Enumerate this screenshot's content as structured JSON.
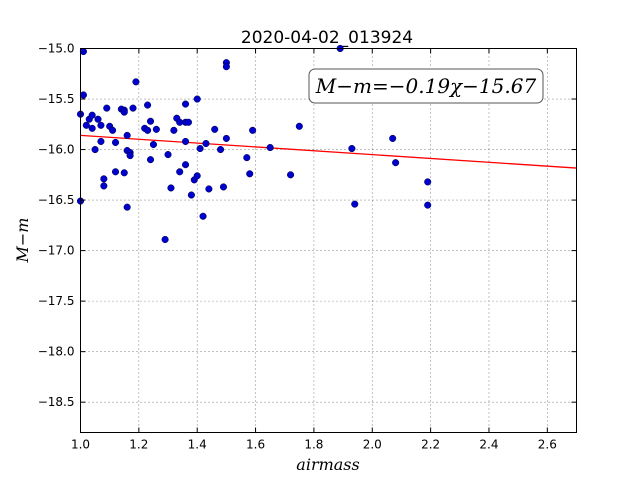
{
  "chart_data": {
    "type": "scatter",
    "title": "2020-04-02_013924",
    "xlabel": "airmass",
    "ylabel": "M−m",
    "xlim": [
      1.0,
      2.7
    ],
    "ylim": [
      -15.0,
      -18.8
    ],
    "y_inverted": true,
    "grid": true,
    "x_ticks": [
      1.0,
      1.2,
      1.4,
      1.6,
      1.8,
      2.0,
      2.2,
      2.4,
      2.6
    ],
    "x_tick_labels": [
      "1.0",
      "1.2",
      "1.4",
      "1.6",
      "1.8",
      "2.0",
      "2.2",
      "2.4",
      "2.6"
    ],
    "y_ticks": [
      -15.0,
      -15.5,
      -16.0,
      -16.5,
      -17.0,
      -17.5,
      -18.0,
      -18.5
    ],
    "y_tick_labels": [
      "−15.0",
      "−15.5",
      "−16.0",
      "−16.5",
      "−17.0",
      "−17.5",
      "−18.0",
      "−18.5"
    ],
    "annotation": "M−m=−0.19χ−15.67",
    "annotation_placement": "top-right",
    "fit": {
      "slope": -0.19,
      "intercept": -15.67,
      "color": "#ff0000"
    },
    "marker_color": "#0000cc",
    "points": [
      [
        1.0,
        -15.65
      ],
      [
        1.0,
        -16.51
      ],
      [
        1.01,
        -15.03
      ],
      [
        1.01,
        -15.46
      ],
      [
        1.02,
        -15.76
      ],
      [
        1.03,
        -15.7
      ],
      [
        1.04,
        -15.66
      ],
      [
        1.04,
        -15.79
      ],
      [
        1.05,
        -16.0
      ],
      [
        1.06,
        -15.7
      ],
      [
        1.07,
        -15.92
      ],
      [
        1.07,
        -15.76
      ],
      [
        1.08,
        -16.36
      ],
      [
        1.08,
        -16.29
      ],
      [
        1.09,
        -15.59
      ],
      [
        1.1,
        -15.77
      ],
      [
        1.11,
        -15.81
      ],
      [
        1.12,
        -15.93
      ],
      [
        1.12,
        -16.22
      ],
      [
        1.14,
        -15.6
      ],
      [
        1.15,
        -15.61
      ],
      [
        1.15,
        -16.23
      ],
      [
        1.15,
        -15.63
      ],
      [
        1.16,
        -15.86
      ],
      [
        1.16,
        -16.57
      ],
      [
        1.16,
        -16.01
      ],
      [
        1.17,
        -16.03
      ],
      [
        1.17,
        -16.06
      ],
      [
        1.18,
        -15.59
      ],
      [
        1.19,
        -15.33
      ],
      [
        1.22,
        -15.79
      ],
      [
        1.23,
        -15.81
      ],
      [
        1.23,
        -15.56
      ],
      [
        1.24,
        -15.72
      ],
      [
        1.24,
        -16.1
      ],
      [
        1.25,
        -15.95
      ],
      [
        1.26,
        -15.8
      ],
      [
        1.29,
        -16.89
      ],
      [
        1.3,
        -16.05
      ],
      [
        1.31,
        -16.38
      ],
      [
        1.32,
        -15.81
      ],
      [
        1.33,
        -15.69
      ],
      [
        1.34,
        -15.73
      ],
      [
        1.34,
        -16.22
      ],
      [
        1.36,
        -15.73
      ],
      [
        1.36,
        -15.55
      ],
      [
        1.36,
        -15.92
      ],
      [
        1.36,
        -16.15
      ],
      [
        1.37,
        -15.73
      ],
      [
        1.38,
        -16.45
      ],
      [
        1.39,
        -16.3
      ],
      [
        1.4,
        -16.26
      ],
      [
        1.4,
        -15.5
      ],
      [
        1.41,
        -15.99
      ],
      [
        1.42,
        -16.66
      ],
      [
        1.43,
        -15.94
      ],
      [
        1.44,
        -16.39
      ],
      [
        1.46,
        -15.8
      ],
      [
        1.48,
        -16.0
      ],
      [
        1.49,
        -16.37
      ],
      [
        1.5,
        -15.14
      ],
      [
        1.5,
        -15.18
      ],
      [
        1.5,
        -15.89
      ],
      [
        1.57,
        -16.08
      ],
      [
        1.58,
        -16.24
      ],
      [
        1.59,
        -15.81
      ],
      [
        1.65,
        -15.98
      ],
      [
        1.72,
        -16.25
      ],
      [
        1.75,
        -15.77
      ],
      [
        1.89,
        -15.0
      ],
      [
        1.93,
        -15.99
      ],
      [
        1.94,
        -16.54
      ],
      [
        2.07,
        -15.89
      ],
      [
        2.08,
        -16.13
      ],
      [
        2.19,
        -16.32
      ],
      [
        2.19,
        -16.55
      ]
    ]
  }
}
